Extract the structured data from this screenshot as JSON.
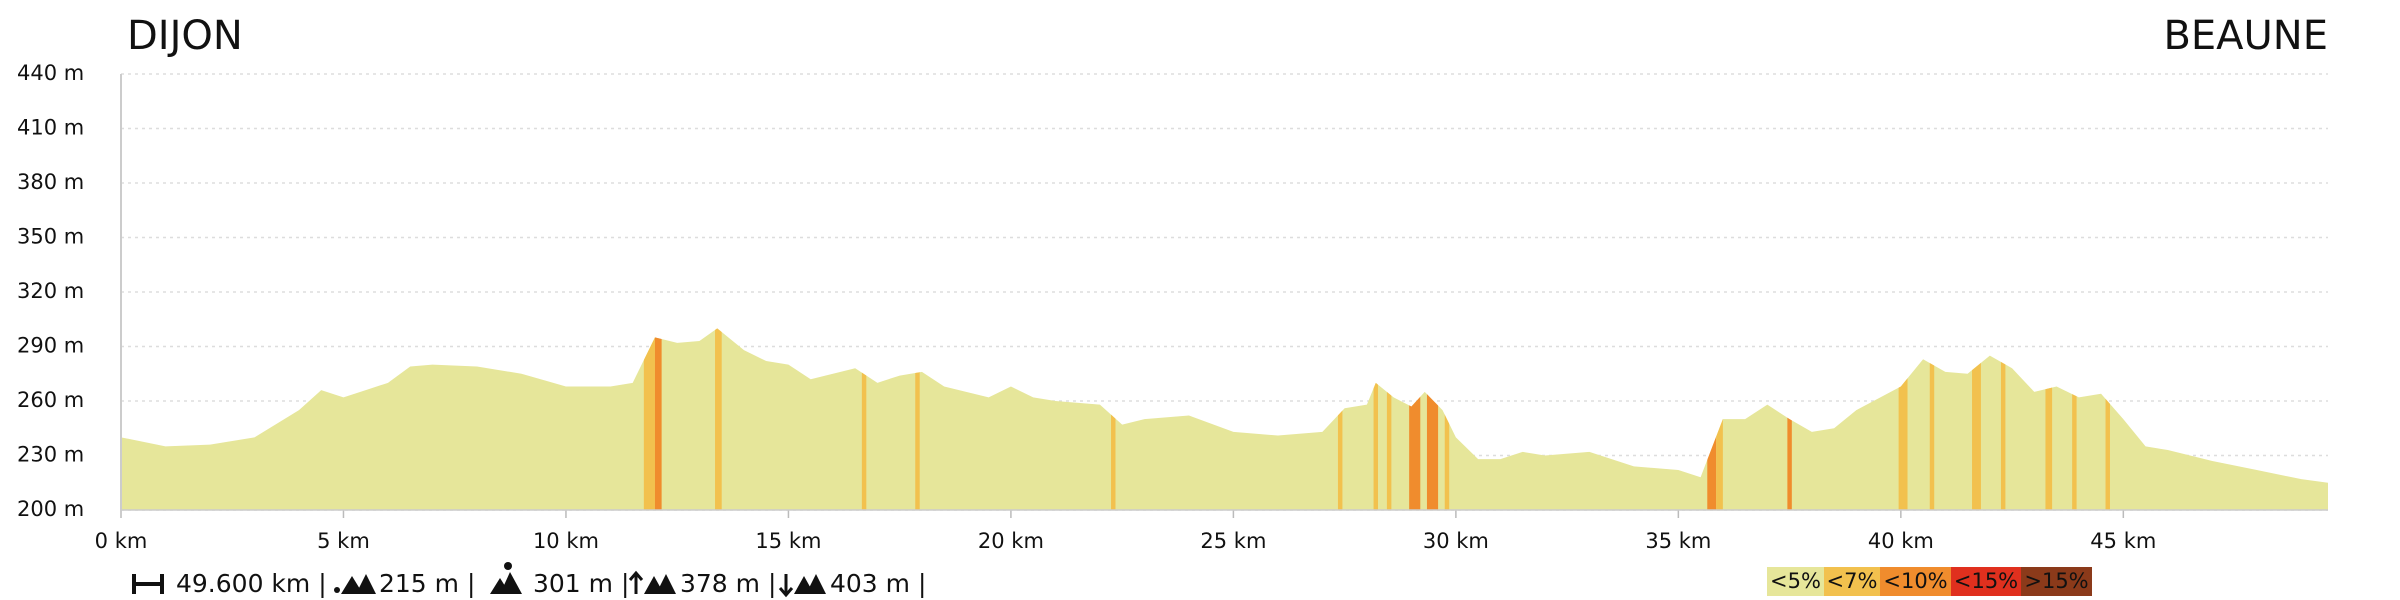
{
  "chart_data": {
    "type": "area",
    "start_label": "DIJON",
    "end_label": "BEAUNE",
    "x": [
      0,
      1,
      2,
      3,
      4,
      4.5,
      5,
      5.5,
      6,
      6.5,
      7,
      8,
      9,
      10,
      11,
      11.5,
      12,
      12.5,
      13,
      13.4,
      14,
      14.5,
      15,
      15.5,
      16,
      16.5,
      17,
      17.5,
      18,
      18.5,
      19.5,
      20,
      20.5,
      21,
      22,
      22.5,
      23,
      24,
      25,
      26,
      27,
      27.5,
      28,
      28.2,
      28.6,
      29,
      29.3,
      29.7,
      30,
      30.5,
      31,
      31.5,
      32,
      33,
      34,
      35,
      35.5,
      36,
      36.5,
      37,
      37.5,
      38,
      38.5,
      39,
      40,
      40.5,
      41,
      41.5,
      42,
      42.5,
      43,
      43.5,
      44,
      44.5,
      45,
      45.5,
      46,
      47,
      48,
      49,
      49.6
    ],
    "values": [
      240,
      235,
      236,
      240,
      255,
      266,
      262,
      266,
      270,
      279,
      280,
      279,
      275,
      268,
      268,
      270,
      295,
      292,
      293,
      300,
      288,
      282,
      280,
      272,
      275,
      278,
      270,
      274,
      276,
      268,
      262,
      268,
      262,
      260,
      258,
      247,
      250,
      252,
      243,
      241,
      243,
      256,
      258,
      270,
      262,
      257,
      265,
      255,
      240,
      228,
      228,
      232,
      230,
      232,
      224,
      222,
      218,
      250,
      250,
      258,
      250,
      243,
      245,
      255,
      268,
      283,
      276,
      275,
      285,
      278,
      265,
      268,
      262,
      264,
      250,
      235,
      233,
      227,
      222,
      217,
      215
    ],
    "color": "#e6e69a",
    "xlim": [
      0,
      49.6
    ],
    "ylim": [
      200,
      440
    ],
    "xticks": [
      {
        "value": 0,
        "label": "0 km"
      },
      {
        "value": 5,
        "label": "5 km"
      },
      {
        "value": 10,
        "label": "10 km"
      },
      {
        "value": 15,
        "label": "15 km"
      },
      {
        "value": 20,
        "label": "20 km"
      },
      {
        "value": 25,
        "label": "25 km"
      },
      {
        "value": 30,
        "label": "30 km"
      },
      {
        "value": 35,
        "label": "35 km"
      },
      {
        "value": 40,
        "label": "40 km"
      },
      {
        "value": 45,
        "label": "45 km"
      }
    ],
    "yticks": [
      {
        "value": 200,
        "label": "200 m"
      },
      {
        "value": 230,
        "label": "230 m"
      },
      {
        "value": 260,
        "label": "260 m"
      },
      {
        "value": 290,
        "label": "290 m"
      },
      {
        "value": 320,
        "label": "320 m"
      },
      {
        "value": 350,
        "label": "350 m"
      },
      {
        "value": 380,
        "label": "380 m"
      },
      {
        "value": 410,
        "label": "410 m"
      },
      {
        "value": 440,
        "label": "440 m"
      }
    ],
    "grid": true,
    "slope_classes": [
      {
        "name": "<5%",
        "color": "#e6e69a"
      },
      {
        "name": "<7%",
        "color": "#f2c14e"
      },
      {
        "name": "<10%",
        "color": "#f08c2d"
      },
      {
        "name": "<15%",
        "color": "#e0301e"
      },
      {
        "name": ">15%",
        "color": "#8b3a1a"
      }
    ],
    "slope_bands": [
      {
        "x0": 11.75,
        "x1": 12.0,
        "class": 1
      },
      {
        "x0": 12.0,
        "x1": 12.15,
        "class": 2
      },
      {
        "x0": 13.35,
        "x1": 13.5,
        "class": 1
      },
      {
        "x0": 16.65,
        "x1": 16.75,
        "class": 1
      },
      {
        "x0": 17.85,
        "x1": 17.95,
        "class": 1
      },
      {
        "x0": 22.25,
        "x1": 22.35,
        "class": 1
      },
      {
        "x0": 27.35,
        "x1": 27.45,
        "class": 1
      },
      {
        "x0": 28.15,
        "x1": 28.25,
        "class": 1
      },
      {
        "x0": 28.45,
        "x1": 28.55,
        "class": 1
      },
      {
        "x0": 28.95,
        "x1": 29.2,
        "class": 2
      },
      {
        "x0": 29.35,
        "x1": 29.6,
        "class": 2
      },
      {
        "x0": 29.75,
        "x1": 29.85,
        "class": 1
      },
      {
        "x0": 35.65,
        "x1": 35.85,
        "class": 2
      },
      {
        "x0": 35.85,
        "x1": 36.0,
        "class": 1
      },
      {
        "x0": 37.45,
        "x1": 37.55,
        "class": 2
      },
      {
        "x0": 39.95,
        "x1": 40.15,
        "class": 1
      },
      {
        "x0": 40.65,
        "x1": 40.75,
        "class": 1
      },
      {
        "x0": 41.6,
        "x1": 41.8,
        "class": 1
      },
      {
        "x0": 42.25,
        "x1": 42.35,
        "class": 1
      },
      {
        "x0": 43.25,
        "x1": 43.4,
        "class": 1
      },
      {
        "x0": 43.85,
        "x1": 43.95,
        "class": 1
      },
      {
        "x0": 44.6,
        "x1": 44.7,
        "class": 1
      }
    ],
    "stats": [
      "49.600 km |",
      "215 m |",
      "301 m |",
      "378 m |",
      "403 m |"
    ]
  }
}
